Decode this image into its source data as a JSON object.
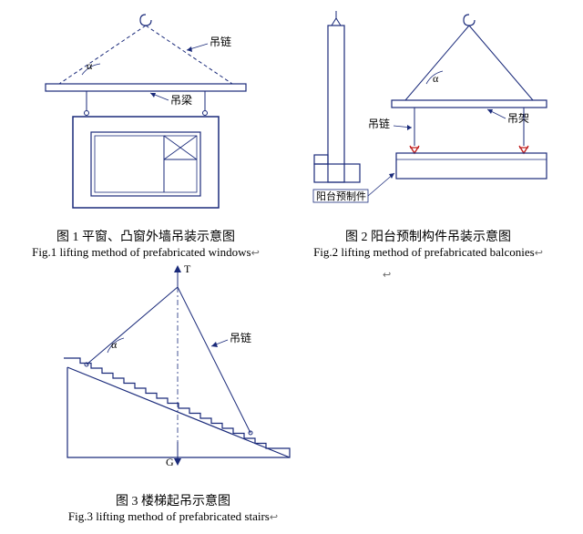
{
  "fig1": {
    "type": "diagram",
    "caption_cn": "图 1  平窗、凸窗外墙吊装示意图",
    "caption_en": "Fig.1 lifting method of prefabricated windows",
    "labels": {
      "chain": "吊链",
      "beam": "吊梁",
      "angle": "α"
    },
    "colors": {
      "stroke": "#1a2a7a",
      "arrow": "#1a2a7a",
      "text": "#000000",
      "bg": "#ffffff"
    },
    "line_width": 1.2,
    "font_size": 12
  },
  "fig2": {
    "type": "diagram",
    "caption_cn": "图 2  阳台预制构件吊装示意图",
    "caption_en": "Fig.2 lifting method of prefabricated balconies",
    "labels": {
      "chain": "吊链",
      "frame": "吊架",
      "angle": "α",
      "balcony": "阳台预制件"
    },
    "colors": {
      "stroke": "#1a2a7a",
      "hook": "#c02020",
      "text": "#000000",
      "bg": "#ffffff"
    },
    "line_width": 1.2,
    "font_size": 12
  },
  "fig3": {
    "type": "diagram",
    "caption_cn": "图 3  楼梯起吊示意图",
    "caption_en": "Fig.3 lifting method of prefabricated stairs",
    "labels": {
      "chain": "吊链",
      "angle": "α",
      "top": "T",
      "bottom": "G"
    },
    "colors": {
      "stroke": "#1a2a7a",
      "text": "#000000",
      "bg": "#ffffff"
    },
    "line_width": 1.2,
    "font_size": 12,
    "stair_steps": 18
  },
  "markers": {
    "arrow_right": "↩",
    "placeholder": "↩"
  }
}
